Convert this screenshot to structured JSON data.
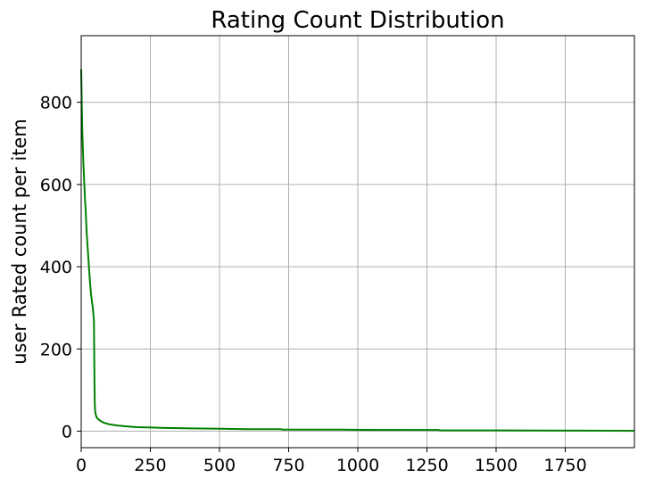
{
  "chart_data": {
    "type": "line",
    "title": "Rating Count Distribution",
    "xlabel": "",
    "ylabel": "user Rated count per item",
    "xlim": [
      0,
      2000
    ],
    "ylim": [
      -40,
      962
    ],
    "xticks": [
      0,
      250,
      500,
      750,
      1000,
      1250,
      1500,
      1750
    ],
    "yticks": [
      0,
      200,
      400,
      600,
      800
    ],
    "grid": true,
    "series": [
      {
        "color": "#008000",
        "points": [
          [
            0,
            880
          ],
          [
            2,
            800
          ],
          [
            4,
            730
          ],
          [
            6,
            690
          ],
          [
            8,
            650
          ],
          [
            10,
            620
          ],
          [
            12,
            590
          ],
          [
            14,
            560
          ],
          [
            16,
            540
          ],
          [
            18,
            510
          ],
          [
            20,
            480
          ],
          [
            22,
            460
          ],
          [
            24,
            440
          ],
          [
            26,
            420
          ],
          [
            28,
            400
          ],
          [
            30,
            380
          ],
          [
            32,
            360
          ],
          [
            34,
            345
          ],
          [
            36,
            330
          ],
          [
            38,
            320
          ],
          [
            40,
            310
          ],
          [
            42,
            300
          ],
          [
            44,
            285
          ],
          [
            46,
            270
          ],
          [
            47,
            200
          ],
          [
            48,
            120
          ],
          [
            49,
            70
          ],
          [
            50,
            52
          ],
          [
            52,
            42
          ],
          [
            55,
            35
          ],
          [
            60,
            30
          ],
          [
            70,
            25
          ],
          [
            80,
            21
          ],
          [
            100,
            17
          ],
          [
            130,
            14
          ],
          [
            160,
            12
          ],
          [
            200,
            10
          ],
          [
            250,
            9
          ],
          [
            300,
            8
          ],
          [
            400,
            7
          ],
          [
            500,
            6
          ],
          [
            600,
            5
          ],
          [
            720,
            5
          ],
          [
            730,
            4
          ],
          [
            900,
            4
          ],
          [
            1000,
            3.5
          ],
          [
            1290,
            3
          ],
          [
            1300,
            2
          ],
          [
            1500,
            2
          ],
          [
            1800,
            1.5
          ],
          [
            2000,
            1
          ]
        ]
      }
    ]
  }
}
